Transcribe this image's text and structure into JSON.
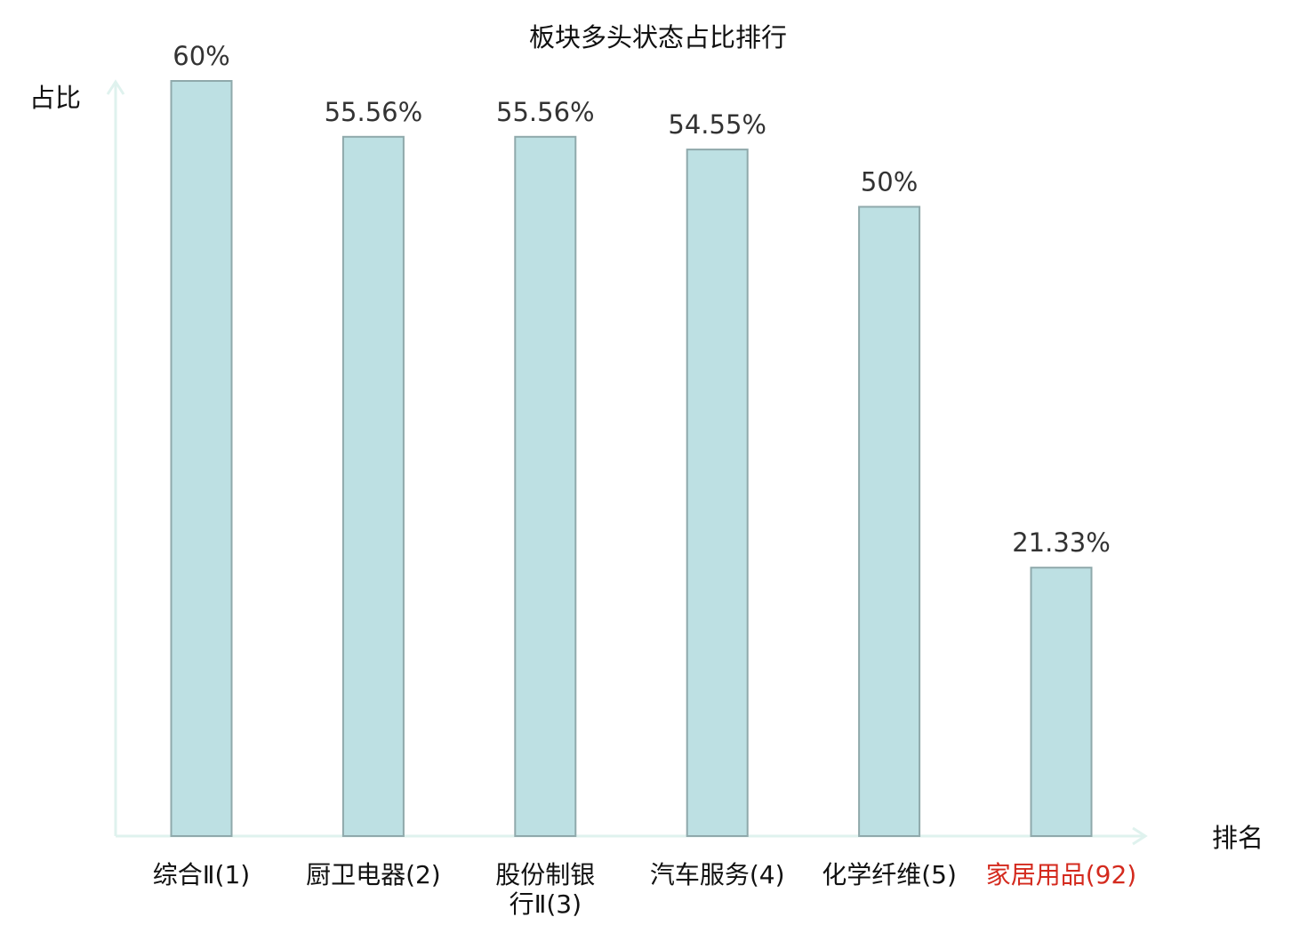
{
  "chart_data": {
    "type": "bar",
    "title": "板块多头状态占比排行",
    "ylabel": "占比",
    "xlabel": "排名",
    "categories": [
      "综合Ⅱ(1)",
      "厨卫电器(2)",
      "股份制银行Ⅱ(3)",
      "汽车服务(4)",
      "化学纤维(5)",
      "家居用品(92)"
    ],
    "category_lines": [
      [
        "综合Ⅱ(1)"
      ],
      [
        "厨卫电器(2)"
      ],
      [
        "股份制银",
        "行Ⅱ(3)"
      ],
      [
        "汽车服务(4)"
      ],
      [
        "化学纤维(5)"
      ],
      [
        "家居用品(92)"
      ]
    ],
    "values": [
      60,
      55.56,
      55.56,
      54.55,
      50,
      21.33
    ],
    "value_labels": [
      "60%",
      "55.56%",
      "55.56%",
      "54.55%",
      "50%",
      "21.33%"
    ],
    "ylim": [
      0,
      60
    ],
    "grid": false,
    "legend": "none",
    "highlight_index": 5
  },
  "colors": {
    "bar_fill": "#bde0e3",
    "bar_stroke": "#8fa9ab",
    "axis": "#dff2ee",
    "label": "#111111",
    "value_label": "#333333",
    "highlight": "#d42a1e"
  }
}
